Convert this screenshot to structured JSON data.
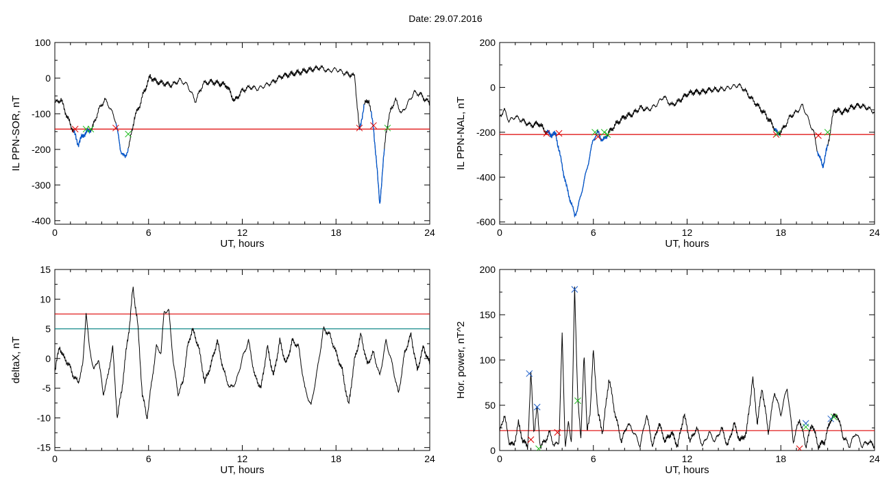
{
  "figure": {
    "title": "Date:  29.07.2016"
  },
  "colors": {
    "trace": "#000000",
    "highlight": "#0055cc",
    "threshold": "#dd0000",
    "threshold2": "#008080",
    "marker_red": "#dd0000",
    "marker_green": "#22bb22",
    "marker_blue": "#1a5cc8"
  },
  "chart_data": [
    {
      "type": "line",
      "ylabel": "IL PPN-SOR, nT",
      "xlabel": "UT, hours",
      "xlim": [
        0,
        24
      ],
      "ylim": [
        -410,
        100
      ],
      "xticks": [
        0,
        6,
        12,
        18,
        24
      ],
      "yticks": [
        100,
        0,
        -100,
        -200,
        -300,
        -400
      ],
      "threshold": -143,
      "series": [
        {
          "x": [
            0,
            0.4,
            0.8,
            1.2,
            1.5,
            1.8,
            2.1,
            2.4,
            2.8,
            3.2,
            3.5,
            3.9,
            4.2,
            4.5,
            4.8,
            5.1,
            5.4,
            5.7,
            6.1,
            6.5,
            7,
            7.5,
            8,
            8.5,
            9,
            9.5,
            10,
            10.5,
            11,
            11.5,
            12,
            12.5,
            13,
            13.5,
            14,
            14.5,
            15,
            15.5,
            16,
            16.5,
            17,
            17.5,
            18,
            18.5,
            19.2,
            19.5,
            19.8,
            20.1,
            20.4,
            20.6,
            20.8,
            21.0,
            21.2,
            21.5,
            21.8,
            22.2,
            22.6,
            23,
            23.4,
            23.7,
            24
          ],
          "y": [
            -70,
            -60,
            -110,
            -150,
            -185,
            -160,
            -150,
            -140,
            -90,
            -60,
            -80,
            -120,
            -200,
            -225,
            -180,
            -110,
            -80,
            -40,
            5,
            -10,
            -15,
            -20,
            -5,
            -20,
            -65,
            -15,
            -10,
            -15,
            -20,
            -65,
            -35,
            -25,
            -30,
            -20,
            -10,
            5,
            10,
            15,
            20,
            25,
            30,
            20,
            25,
            15,
            5,
            -150,
            -75,
            -60,
            -140,
            -240,
            -355,
            -250,
            -150,
            -90,
            -60,
            -100,
            -70,
            -40,
            -45,
            -60,
            -70
          ]
        }
      ],
      "highlight_ranges": [
        [
          1.2,
          2.3
        ],
        [
          3.9,
          4.7
        ],
        [
          19.5,
          19.8
        ],
        [
          20.2,
          21.1
        ]
      ],
      "markers": [
        {
          "x": 1.3,
          "y": -143,
          "color": "red"
        },
        {
          "x": 2.0,
          "y": -143,
          "color": "green"
        },
        {
          "x": 2.3,
          "y": -143,
          "color": "green"
        },
        {
          "x": 3.9,
          "y": -140,
          "color": "red"
        },
        {
          "x": 4.7,
          "y": -157,
          "color": "green"
        },
        {
          "x": 19.5,
          "y": -140,
          "color": "red"
        },
        {
          "x": 20.4,
          "y": -133,
          "color": "red"
        },
        {
          "x": 21.3,
          "y": -140,
          "color": "green"
        }
      ]
    },
    {
      "type": "line",
      "ylabel": "IL PPN-NAL, nT",
      "xlabel": "UT, hours",
      "xlim": [
        0,
        24
      ],
      "ylim": [
        -610,
        200
      ],
      "xticks": [
        0,
        6,
        12,
        18,
        24
      ],
      "yticks": [
        200,
        0,
        -200,
        -400,
        -600
      ],
      "threshold": -210,
      "series": [
        {
          "x": [
            0,
            0.3,
            0.6,
            1,
            1.5,
            2,
            2.5,
            3,
            3.3,
            3.6,
            4,
            4.3,
            4.6,
            4.8,
            5,
            5.3,
            5.6,
            6,
            6.3,
            6.6,
            7,
            7.5,
            8,
            8.5,
            9,
            9.5,
            10,
            10.5,
            11,
            11.5,
            12,
            12.5,
            13,
            13.5,
            14,
            14.5,
            15,
            15.3,
            15.6,
            16,
            16.5,
            17,
            17.5,
            17.8,
            18.2,
            18.6,
            19,
            19.4,
            19.8,
            20.1,
            20.4,
            20.7,
            21,
            21.4,
            22,
            22.5,
            23,
            23.5,
            24
          ],
          "y": [
            -130,
            -100,
            -150,
            -130,
            -150,
            -170,
            -160,
            -200,
            -210,
            -210,
            -350,
            -450,
            -520,
            -570,
            -540,
            -450,
            -360,
            -230,
            -200,
            -240,
            -200,
            -160,
            -130,
            -120,
            -90,
            -100,
            -80,
            -40,
            -80,
            -60,
            -30,
            -20,
            -20,
            -10,
            -10,
            -5,
            5,
            10,
            -5,
            -40,
            -80,
            -120,
            -170,
            -210,
            -180,
            -130,
            -110,
            -80,
            -150,
            -200,
            -300,
            -350,
            -260,
            -100,
            -110,
            -90,
            -80,
            -90,
            -110
          ]
        }
      ],
      "highlight_ranges": [
        [
          3.0,
          6.3
        ],
        [
          6.3,
          6.9
        ],
        [
          17.6,
          17.9
        ],
        [
          20.3,
          21.0
        ]
      ],
      "markers": [
        {
          "x": 3.0,
          "y": -205,
          "color": "red"
        },
        {
          "x": 3.8,
          "y": -205,
          "color": "red"
        },
        {
          "x": 6.1,
          "y": -200,
          "color": "green"
        },
        {
          "x": 6.3,
          "y": -220,
          "color": "red"
        },
        {
          "x": 6.7,
          "y": -200,
          "color": "green"
        },
        {
          "x": 6.9,
          "y": -210,
          "color": "green"
        },
        {
          "x": 17.7,
          "y": -210,
          "color": "red"
        },
        {
          "x": 17.8,
          "y": -205,
          "color": "green"
        },
        {
          "x": 20.4,
          "y": -215,
          "color": "red"
        },
        {
          "x": 21.0,
          "y": -200,
          "color": "green"
        }
      ]
    },
    {
      "type": "line",
      "ylabel": "deltaX, nT",
      "xlabel": "UT, hours",
      "xlim": [
        0,
        24
      ],
      "ylim": [
        -15.5,
        15
      ],
      "xticks": [
        0,
        6,
        12,
        18,
        24
      ],
      "yticks": [
        15,
        10,
        5,
        0,
        -5,
        -10,
        -15
      ],
      "threshold": 7.5,
      "threshold2": 5,
      "series": [
        {
          "x": [
            0,
            0.3,
            0.6,
            0.9,
            1.2,
            1.5,
            1.8,
            2.0,
            2.2,
            2.5,
            2.8,
            3.1,
            3.4,
            3.7,
            4.0,
            4.3,
            4.6,
            4.8,
            5.0,
            5.3,
            5.6,
            5.9,
            6.2,
            6.5,
            6.8,
            7.0,
            7.3,
            7.6,
            7.9,
            8.2,
            8.5,
            8.8,
            9.2,
            9.6,
            10,
            10.4,
            10.8,
            11.2,
            11.6,
            12,
            12.4,
            12.8,
            13.2,
            13.6,
            14,
            14.4,
            14.8,
            15.2,
            15.6,
            16,
            16.4,
            16.8,
            17.2,
            17.6,
            18,
            18.4,
            18.8,
            19.2,
            19.6,
            20,
            20.4,
            20.8,
            21.2,
            21.6,
            22,
            22.4,
            22.8,
            23.2,
            23.6,
            24
          ],
          "y": [
            -2,
            2,
            0,
            -1,
            -3,
            -4,
            -1,
            8,
            2,
            -2,
            0,
            -6,
            -3,
            2,
            -10,
            -5,
            2,
            6,
            12,
            6,
            -6,
            -10,
            -4,
            2,
            1,
            8,
            8,
            -1,
            -6,
            -4,
            2,
            5,
            2,
            -4,
            -1,
            3,
            -2,
            -5,
            -4,
            0,
            3,
            -3,
            -5,
            2,
            -3,
            3,
            -1,
            3,
            2,
            -5,
            -8,
            -2,
            5,
            4,
            1,
            -2,
            -8,
            0,
            4,
            -1,
            1,
            -3,
            3,
            -1,
            -6,
            1,
            4,
            -2,
            2,
            -1
          ]
        }
      ],
      "highlight_ranges": [],
      "markers": []
    },
    {
      "type": "line",
      "ylabel": "Hor. power, nT^2",
      "xlabel": "UT, hours",
      "xlim": [
        0,
        24
      ],
      "ylim": [
        0,
        200
      ],
      "xticks": [
        0,
        6,
        12,
        18,
        24
      ],
      "yticks": [
        200,
        150,
        100,
        50,
        0
      ],
      "threshold": 22,
      "series": [
        {
          "x": [
            0,
            0.3,
            0.6,
            0.9,
            1.2,
            1.5,
            1.8,
            2.0,
            2.2,
            2.4,
            2.6,
            2.9,
            3.2,
            3.5,
            3.8,
            4.0,
            4.2,
            4.4,
            4.6,
            4.8,
            5.0,
            5.2,
            5.4,
            5.6,
            5.8,
            6.0,
            6.3,
            6.6,
            7.0,
            7.4,
            7.8,
            8.2,
            8.6,
            9,
            9.4,
            9.8,
            10.2,
            10.6,
            11,
            11.4,
            11.8,
            12.2,
            12.6,
            13,
            13.4,
            13.8,
            14.2,
            14.6,
            15,
            15.4,
            15.8,
            16.2,
            16.5,
            16.8,
            17.2,
            17.6,
            18,
            18.4,
            18.8,
            19.2,
            19.6,
            20,
            20.4,
            20.8,
            21.2,
            21.6,
            22,
            22.4,
            22.8,
            23.2,
            23.6,
            24
          ],
          "y": [
            20,
            40,
            10,
            5,
            30,
            10,
            5,
            85,
            20,
            48,
            5,
            10,
            20,
            5,
            10,
            128,
            5,
            30,
            10,
            178,
            60,
            10,
            110,
            20,
            45,
            110,
            40,
            20,
            80,
            40,
            10,
            30,
            20,
            5,
            40,
            5,
            30,
            10,
            20,
            5,
            40,
            10,
            25,
            5,
            20,
            10,
            25,
            5,
            30,
            10,
            20,
            80,
            30,
            70,
            20,
            65,
            40,
            70,
            10,
            35,
            5,
            30,
            5,
            10,
            35,
            40,
            15,
            5,
            20,
            5,
            10,
            5
          ]
        }
      ],
      "highlight_ranges": [],
      "markers": [
        {
          "x": 1.9,
          "y": 85,
          "color": "blue"
        },
        {
          "x": 2.4,
          "y": 48,
          "color": "blue"
        },
        {
          "x": 4.8,
          "y": 178,
          "color": "blue"
        },
        {
          "x": 19.6,
          "y": 30,
          "color": "blue"
        },
        {
          "x": 21.2,
          "y": 35,
          "color": "blue"
        },
        {
          "x": 5.0,
          "y": 55,
          "color": "green"
        },
        {
          "x": 19.6,
          "y": 26,
          "color": "green"
        },
        {
          "x": 21.4,
          "y": 37,
          "color": "green"
        },
        {
          "x": 2.0,
          "y": 12,
          "color": "red"
        },
        {
          "x": 3.7,
          "y": 20,
          "color": "red"
        },
        {
          "x": 2.5,
          "y": 2,
          "color": "green"
        },
        {
          "x": 19.2,
          "y": 2,
          "color": "red"
        }
      ]
    }
  ]
}
